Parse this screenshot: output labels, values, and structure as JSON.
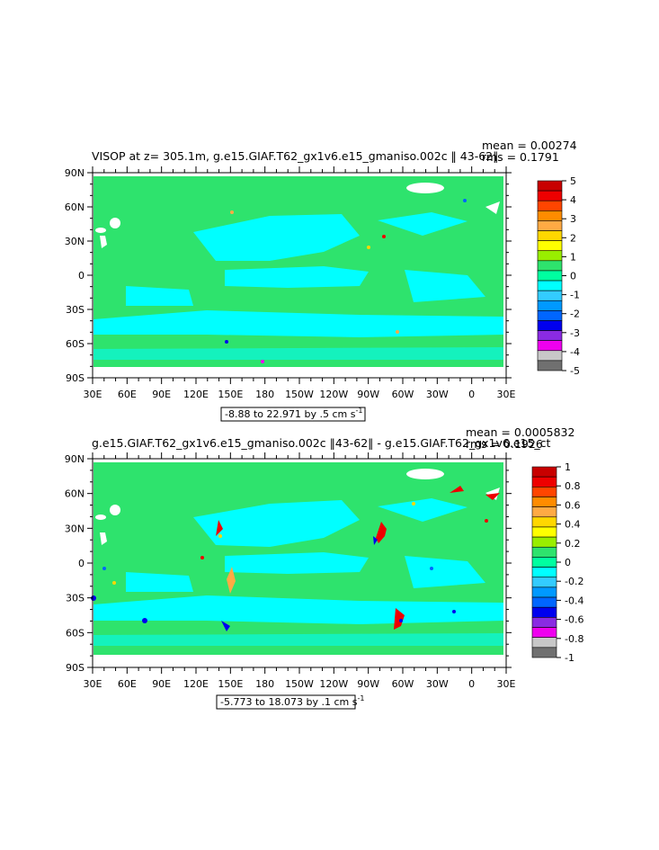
{
  "panels": [
    {
      "title": "VISOP at z= 305.1m, g.e15.GIAF.T62_gx1v6.e15_gmaniso.002c ‖ 43-62‖",
      "stats_mean": "mean = 0.00274",
      "stats_rms": "rms = 0.1791",
      "range_label": "-8.88 to 22.971 by .5 cm s",
      "range_unit_exp": "-1",
      "lat_labels": [
        "90N",
        "60N",
        "30N",
        "0",
        "30S",
        "60S",
        "90S"
      ],
      "lon_labels": [
        "30E",
        "60E",
        "90E",
        "120E",
        "150E",
        "180",
        "150W",
        "120W",
        "90W",
        "60W",
        "30W",
        "0",
        "30E"
      ],
      "colorbar_labels": [
        "5",
        "4",
        "3",
        "2",
        "1",
        "0",
        "-1",
        "-2",
        "-3",
        "-4",
        "-5"
      ],
      "colorbar_colors": [
        "#c80000",
        "#ee0000",
        "#ff4500",
        "#ff8c00",
        "#ffaa44",
        "#ffd700",
        "#ffff00",
        "#99ee00",
        "#2ee36d",
        "#00ffa0",
        "#00ffff",
        "#33ccff",
        "#0099ff",
        "#0066ff",
        "#0000ee",
        "#8a2be2",
        "#ee00ee",
        "#c8c8c8",
        "#707070"
      ]
    },
    {
      "title": "g.e15.GIAF.T62_gx1v6.e15_gmaniso.002c ‖43-62‖ - g.e15.GIAF.T62_gx1v6.e15_ct",
      "stats_mean": "mean = 0.0005832",
      "stats_rms": "rms = 0.1926",
      "range_label": "-5.773 to 18.073 by .1 cm s",
      "range_unit_exp": "-1",
      "lat_labels": [
        "90N",
        "60N",
        "30N",
        "0",
        "30S",
        "60S",
        "90S"
      ],
      "lon_labels": [
        "30E",
        "60E",
        "90E",
        "120E",
        "150E",
        "180",
        "150W",
        "120W",
        "90W",
        "60W",
        "30W",
        "0",
        "30E"
      ],
      "colorbar_labels": [
        "1",
        "0.8",
        "0.6",
        "0.4",
        "0.2",
        "0",
        "-0.2",
        "-0.4",
        "-0.6",
        "-0.8",
        "-1"
      ],
      "colorbar_colors": [
        "#c80000",
        "#ee0000",
        "#ff4500",
        "#ff8c00",
        "#ffaa44",
        "#ffd700",
        "#ffff00",
        "#99ee00",
        "#2ee36d",
        "#00ffa0",
        "#00ffff",
        "#33ccff",
        "#0099ff",
        "#0066ff",
        "#0000ee",
        "#8a2be2",
        "#ee00ee",
        "#c8c8c8",
        "#707070"
      ]
    }
  ],
  "colors": {
    "field_zero_plus": "#2ee36d",
    "field_zero_minus": "#00ffff",
    "frame": "#000000",
    "land_ice": "#ffffff"
  },
  "chart_data": [
    {
      "type": "heatmap",
      "title": "VISOP at z= 305.1m, g.e15.GIAF.T62_gx1v6.e15_gmaniso.002c ‖ 43-62‖",
      "x_ticks": [
        "30E",
        "60E",
        "90E",
        "120E",
        "150E",
        "180",
        "150W",
        "120W",
        "90W",
        "60W",
        "30W",
        "0",
        "30E"
      ],
      "y_ticks": [
        "90N",
        "60N",
        "30N",
        "0",
        "30S",
        "60S",
        "90S"
      ],
      "xlim": [
        30,
        390
      ],
      "ylim": [
        -90,
        90
      ],
      "levels": [
        -5,
        -4,
        -3,
        -2,
        -1,
        0,
        1,
        2,
        3,
        4,
        5
      ],
      "min": -8.88,
      "max": 22.971,
      "interval": 0.5,
      "units": "cm s-1",
      "mean": 0.00274,
      "rms": 0.1791
    },
    {
      "type": "heatmap",
      "title": "g.e15.GIAF.T62_gx1v6.e15_gmaniso.002c ‖43-62‖ - g.e15.GIAF.T62_gx1v6.e15_ct",
      "x_ticks": [
        "30E",
        "60E",
        "90E",
        "120E",
        "150E",
        "180",
        "150W",
        "120W",
        "90W",
        "60W",
        "30W",
        "0",
        "30E"
      ],
      "y_ticks": [
        "90N",
        "60N",
        "30N",
        "0",
        "30S",
        "60S",
        "90S"
      ],
      "xlim": [
        30,
        390
      ],
      "ylim": [
        -90,
        90
      ],
      "levels": [
        -1,
        -0.8,
        -0.6,
        -0.4,
        -0.2,
        0,
        0.2,
        0.4,
        0.6,
        0.8,
        1
      ],
      "min": -5.773,
      "max": 18.073,
      "interval": 0.1,
      "units": "cm s-1",
      "mean": 0.0005832,
      "rms": 0.1926
    }
  ]
}
